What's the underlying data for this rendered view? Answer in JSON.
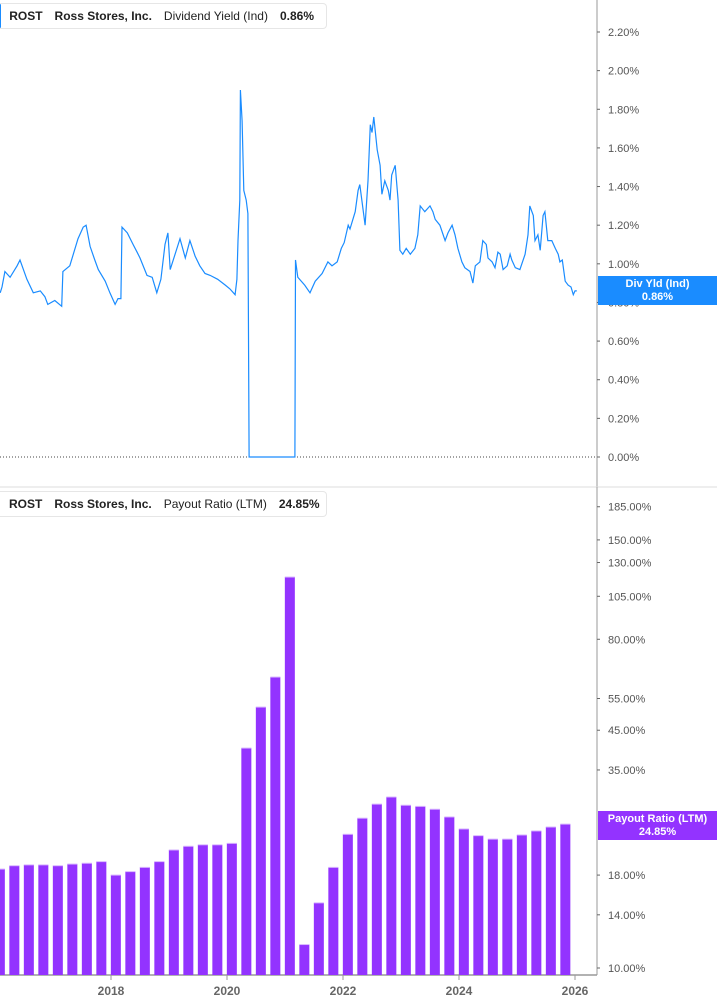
{
  "colors": {
    "yield": "#1a8cff",
    "payout": "#9333ff"
  },
  "chart_data": [
    {
      "type": "line",
      "legend": {
        "ticker": "ROST",
        "company": "Ross Stores, Inc.",
        "metric": "Dividend Yield (Ind)",
        "value": "0.86%"
      },
      "badge": {
        "label": "Div Yld (Ind)",
        "value": "0.86%"
      },
      "y_scale": "linear",
      "ylim": [
        0,
        2.2
      ],
      "y_ticks": [
        "2.20%",
        "2.00%",
        "1.80%",
        "1.60%",
        "1.40%",
        "1.20%",
        "1.00%",
        "0.80%",
        "0.60%",
        "0.40%",
        "0.20%",
        "0.00%"
      ],
      "x_unit": "year",
      "series": [
        {
          "points": [
            [
              2016.09,
              0.85
            ],
            [
              2016.12,
              0.88
            ],
            [
              2016.17,
              0.96
            ],
            [
              2016.26,
              0.93
            ],
            [
              2016.38,
              0.99
            ],
            [
              2016.43,
              1.02
            ],
            [
              2016.55,
              0.92
            ],
            [
              2016.66,
              0.85
            ],
            [
              2016.78,
              0.86
            ],
            [
              2016.86,
              0.83
            ],
            [
              2016.91,
              0.79
            ],
            [
              2017.03,
              0.81
            ],
            [
              2017.15,
              0.78
            ],
            [
              2017.17,
              0.96
            ],
            [
              2017.29,
              0.99
            ],
            [
              2017.43,
              1.13
            ],
            [
              2017.52,
              1.19
            ],
            [
              2017.57,
              1.2
            ],
            [
              2017.64,
              1.09
            ],
            [
              2017.72,
              1.02
            ],
            [
              2017.78,
              0.97
            ],
            [
              2017.9,
              0.91
            ],
            [
              2017.98,
              0.85
            ],
            [
              2018.07,
              0.79
            ],
            [
              2018.12,
              0.82
            ],
            [
              2018.17,
              0.82
            ],
            [
              2018.19,
              1.19
            ],
            [
              2018.28,
              1.16
            ],
            [
              2018.38,
              1.1
            ],
            [
              2018.45,
              1.06
            ],
            [
              2018.5,
              1.03
            ],
            [
              2018.62,
              0.94
            ],
            [
              2018.71,
              0.93
            ],
            [
              2018.79,
              0.85
            ],
            [
              2018.86,
              0.92
            ],
            [
              2018.93,
              1.1
            ],
            [
              2018.98,
              1.16
            ],
            [
              2019.02,
              0.97
            ],
            [
              2019.19,
              1.13
            ],
            [
              2019.28,
              1.03
            ],
            [
              2019.36,
              1.12
            ],
            [
              2019.45,
              1.04
            ],
            [
              2019.53,
              0.99
            ],
            [
              2019.62,
              0.95
            ],
            [
              2019.71,
              0.94
            ],
            [
              2019.84,
              0.92
            ],
            [
              2019.97,
              0.89
            ],
            [
              2020.05,
              0.87
            ],
            [
              2020.14,
              0.84
            ],
            [
              2020.17,
              0.92
            ],
            [
              2020.19,
              1.12
            ],
            [
              2020.22,
              1.33
            ],
            [
              2020.23,
              1.9
            ],
            [
              2020.26,
              1.74
            ],
            [
              2020.29,
              1.38
            ],
            [
              2020.33,
              1.33
            ],
            [
              2020.36,
              1.26
            ],
            [
              2020.38,
              0
            ],
            [
              2021.17,
              0
            ],
            [
              2021.18,
              1.02
            ],
            [
              2021.22,
              0.93
            ],
            [
              2021.34,
              0.89
            ],
            [
              2021.43,
              0.85
            ],
            [
              2021.52,
              0.91
            ],
            [
              2021.64,
              0.95
            ],
            [
              2021.74,
              1.01
            ],
            [
              2021.81,
              0.99
            ],
            [
              2021.9,
              1.01
            ],
            [
              2021.97,
              1.08
            ],
            [
              2022.02,
              1.11
            ],
            [
              2022.09,
              1.2
            ],
            [
              2022.12,
              1.18
            ],
            [
              2022.16,
              1.22
            ],
            [
              2022.21,
              1.27
            ],
            [
              2022.26,
              1.38
            ],
            [
              2022.29,
              1.41
            ],
            [
              2022.38,
              1.2
            ],
            [
              2022.43,
              1.43
            ],
            [
              2022.47,
              1.72
            ],
            [
              2022.5,
              1.68
            ],
            [
              2022.53,
              1.76
            ],
            [
              2022.59,
              1.59
            ],
            [
              2022.64,
              1.51
            ],
            [
              2022.67,
              1.36
            ],
            [
              2022.72,
              1.43
            ],
            [
              2022.78,
              1.38
            ],
            [
              2022.81,
              1.33
            ],
            [
              2022.84,
              1.46
            ],
            [
              2022.9,
              1.51
            ],
            [
              2022.95,
              1.33
            ],
            [
              2022.98,
              1.07
            ],
            [
              2023.03,
              1.05
            ],
            [
              2023.09,
              1.08
            ],
            [
              2023.16,
              1.05
            ],
            [
              2023.24,
              1.08
            ],
            [
              2023.29,
              1.15
            ],
            [
              2023.33,
              1.3
            ],
            [
              2023.41,
              1.27
            ],
            [
              2023.5,
              1.3
            ],
            [
              2023.55,
              1.27
            ],
            [
              2023.59,
              1.23
            ],
            [
              2023.67,
              1.2
            ],
            [
              2023.76,
              1.12
            ],
            [
              2023.81,
              1.16
            ],
            [
              2023.88,
              1.2
            ],
            [
              2023.93,
              1.15
            ],
            [
              2023.98,
              1.08
            ],
            [
              2024.05,
              1.01
            ],
            [
              2024.1,
              0.98
            ],
            [
              2024.19,
              0.96
            ],
            [
              2024.24,
              0.9
            ],
            [
              2024.28,
              0.99
            ],
            [
              2024.36,
              1.01
            ],
            [
              2024.41,
              1.12
            ],
            [
              2024.47,
              1.1
            ],
            [
              2024.5,
              1.03
            ],
            [
              2024.57,
              1.01
            ],
            [
              2024.62,
              0.98
            ],
            [
              2024.67,
              1.06
            ],
            [
              2024.71,
              1.05
            ],
            [
              2024.76,
              0.97
            ],
            [
              2024.83,
              0.99
            ],
            [
              2024.88,
              1.05
            ],
            [
              2024.91,
              1.02
            ],
            [
              2024.97,
              0.98
            ],
            [
              2025.05,
              0.97
            ],
            [
              2025.14,
              1.05
            ],
            [
              2025.19,
              1.15
            ],
            [
              2025.22,
              1.3
            ],
            [
              2025.28,
              1.25
            ],
            [
              2025.31,
              1.12
            ],
            [
              2025.36,
              1.15
            ],
            [
              2025.4,
              1.07
            ],
            [
              2025.45,
              1.25
            ],
            [
              2025.48,
              1.27
            ],
            [
              2025.53,
              1.12
            ],
            [
              2025.6,
              1.12
            ],
            [
              2025.66,
              1.08
            ],
            [
              2025.71,
              1.05
            ],
            [
              2025.74,
              1.01
            ],
            [
              2025.78,
              1.02
            ],
            [
              2025.83,
              0.91
            ],
            [
              2025.88,
              0.89
            ],
            [
              2025.93,
              0.88
            ],
            [
              2025.97,
              0.84
            ],
            [
              2026.0,
              0.86
            ],
            [
              2026.03,
              0.86
            ]
          ]
        }
      ]
    },
    {
      "type": "bar",
      "legend": {
        "ticker": "ROST",
        "company": "Ross Stores, Inc.",
        "metric": "Payout Ratio (LTM)",
        "value": "24.85%"
      },
      "badge": {
        "label": "Payout Ratio (LTM)",
        "value": "24.85%"
      },
      "y_scale": "log",
      "ylim": [
        10,
        185
      ],
      "y_ticks": [
        {
          "v": 185,
          "label": "185.00%"
        },
        {
          "v": 150,
          "label": "150.00%"
        },
        {
          "v": 130,
          "label": "130.00%"
        },
        {
          "v": 105,
          "label": "105.00%"
        },
        {
          "v": 80,
          "label": "80.00%"
        },
        {
          "v": 55,
          "label": "55.00%"
        },
        {
          "v": 45,
          "label": "45.00%"
        },
        {
          "v": 35,
          "label": "35.00%"
        },
        {
          "v": 18,
          "label": "18.00%"
        },
        {
          "v": 14,
          "label": "14.00%"
        },
        {
          "v": 10,
          "label": "10.00%"
        }
      ],
      "x_ticks": [
        "2018",
        "2020",
        "2022",
        "2024",
        "2026"
      ],
      "categories": [
        "2016-02",
        "2016-05",
        "2016-08",
        "2016-11",
        "2017-02",
        "2017-05",
        "2017-08",
        "2017-11",
        "2018-02",
        "2018-05",
        "2018-08",
        "2018-11",
        "2019-02",
        "2019-05",
        "2019-08",
        "2019-11",
        "2020-02",
        "2020-05",
        "2020-08",
        "2020-11",
        "2021-02",
        "2021-05",
        "2021-08",
        "2021-11",
        "2022-02",
        "2022-05",
        "2022-08",
        "2022-11",
        "2023-02",
        "2023-05",
        "2023-08",
        "2023-11",
        "2024-02",
        "2024-05",
        "2024-08",
        "2024-11",
        "2025-02",
        "2025-05",
        "2025-08",
        "2025-11"
      ],
      "values": [
        18.7,
        19.1,
        19.2,
        19.2,
        19.1,
        19.3,
        19.4,
        19.6,
        18.0,
        18.4,
        18.9,
        19.6,
        21.1,
        21.6,
        21.8,
        21.8,
        22.0,
        40.2,
        52.1,
        63.0,
        118.6,
        11.6,
        15.1,
        18.9,
        23.3,
        25.8,
        28.2,
        29.5,
        28.0,
        27.8,
        27.3,
        26.0,
        24.1,
        23.1,
        22.6,
        22.6,
        23.2,
        23.8,
        24.4,
        24.85
      ]
    }
  ]
}
